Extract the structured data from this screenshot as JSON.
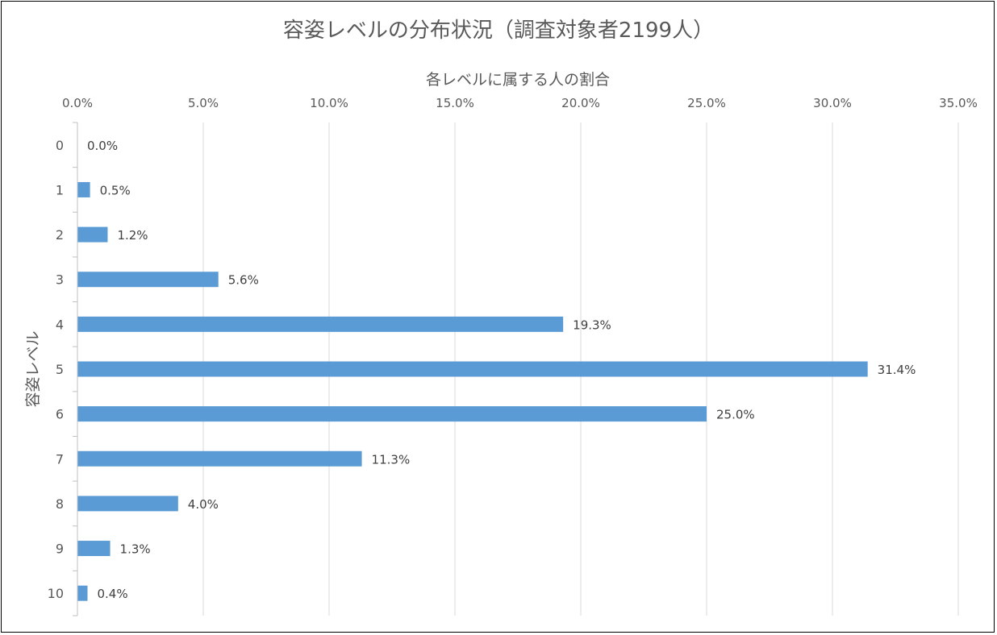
{
  "chart_data": {
    "type": "bar",
    "orientation": "horizontal",
    "title": "容姿レベルの分布状況（調査対象者2199人）",
    "xlabel": "各レベルに属する人の割合",
    "ylabel": "容姿レベル",
    "categories": [
      "0",
      "1",
      "2",
      "3",
      "4",
      "5",
      "6",
      "7",
      "8",
      "9",
      "10"
    ],
    "values": [
      0.0,
      0.5,
      1.2,
      5.6,
      19.3,
      31.4,
      25.0,
      11.3,
      4.0,
      1.3,
      0.4
    ],
    "value_labels": [
      "0.0%",
      "0.5%",
      "1.2%",
      "5.6%",
      "19.3%",
      "31.4%",
      "25.0%",
      "11.3%",
      "4.0%",
      "1.3%",
      "0.4%"
    ],
    "xlim": [
      0,
      35
    ],
    "x_ticks": [
      "0.0%",
      "5.0%",
      "10.0%",
      "15.0%",
      "20.0%",
      "25.0%",
      "30.0%",
      "35.0%"
    ],
    "x_axis_position": "top",
    "grid": true,
    "legend": "none",
    "bar_color": "#5b9bd5",
    "grid_color": "#d9d9d9"
  }
}
